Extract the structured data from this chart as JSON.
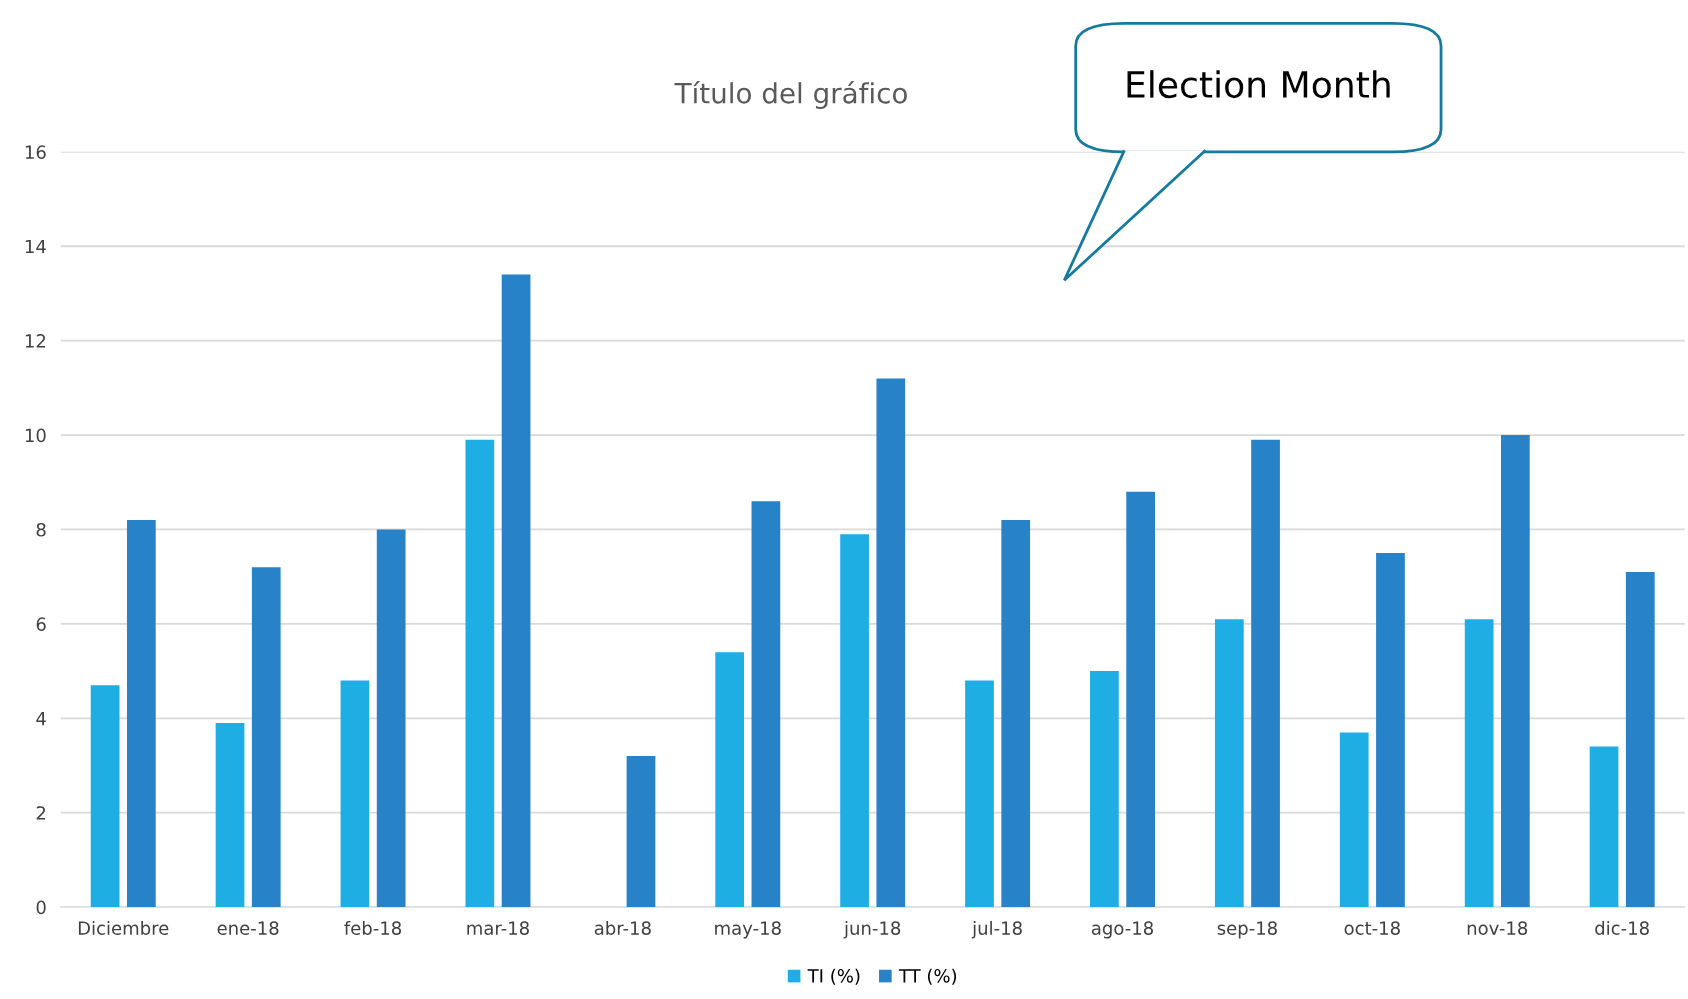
{
  "chart_data": {
    "type": "bar",
    "title": "Título del gráfico",
    "categories": [
      "Diciembre",
      "ene-18",
      "feb-18",
      "mar-18",
      "abr-18",
      "may-18",
      "jun-18",
      "jul-18",
      "ago-18",
      "sep-18",
      "oct-18",
      "nov-18",
      "dic-18"
    ],
    "series": [
      {
        "name": "TI (%)",
        "color": "#1eaee4",
        "values": [
          4.7,
          3.9,
          4.8,
          9.9,
          null,
          5.4,
          7.9,
          4.8,
          5.0,
          6.1,
          3.7,
          6.1,
          3.4
        ]
      },
      {
        "name": "TT (%)",
        "color": "#2882c8",
        "values": [
          8.2,
          7.2,
          8.0,
          13.4,
          3.2,
          8.6,
          11.2,
          8.2,
          8.8,
          9.9,
          7.5,
          10.0,
          7.1
        ]
      }
    ],
    "ylim": [
      0,
      16
    ],
    "yticks": [
      0,
      2,
      4,
      6,
      8,
      10,
      12,
      14,
      16
    ],
    "grid": "y",
    "legend": "bottom",
    "annotations": [
      "Election Month"
    ]
  }
}
